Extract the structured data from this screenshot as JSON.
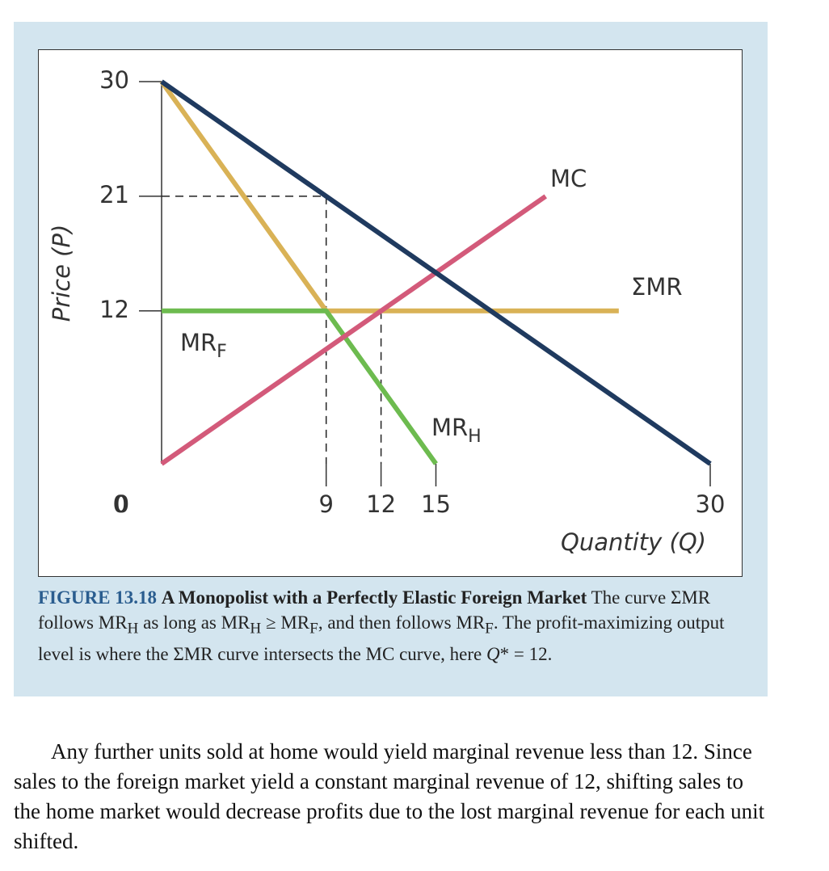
{
  "chart_data": {
    "type": "line",
    "xlabel": "Quantity (Q)",
    "ylabel": "Price (P)",
    "xlim": [
      0,
      30
    ],
    "ylim": [
      0,
      30
    ],
    "xticks": [
      0,
      9,
      12,
      15,
      30
    ],
    "yticks": [
      0,
      12,
      21,
      30
    ],
    "series": [
      {
        "color": "#1f3a5f",
        "x": [
          0,
          30
        ],
        "values": [
          30,
          0
        ]
      },
      {
        "color": "#d9b256",
        "x": [
          0,
          9,
          25
        ],
        "values": [
          30,
          12,
          12
        ]
      },
      {
        "color": "#6dbb4f",
        "x": [
          0,
          9,
          15
        ],
        "values": [
          12,
          12,
          0
        ]
      },
      {
        "color": "#d35a7a",
        "x": [
          0,
          21
        ],
        "values": [
          0,
          21
        ]
      }
    ],
    "guides": [
      {
        "x": 9,
        "y": 21
      },
      {
        "x": 12,
        "y": 12
      }
    ],
    "annotations": [
      {
        "text": "MC"
      },
      {
        "text": "ΣMR"
      },
      {
        "text": "MR",
        "sub": "F"
      },
      {
        "text": "MR",
        "sub": "H"
      }
    ]
  },
  "caption": {
    "label": "FIGURE 13.18",
    "title": "A Monopolist with a Perfectly Elastic Foreign Market",
    "runs": [
      "The curve ΣMR follows MR",
      "H",
      " as long as MR",
      "H",
      " ≥ MR",
      "F",
      ", and then follows MR",
      "F",
      ". The profit-maximizing output level is where the ΣMR curve intersects the MC curve, here ",
      "Q",
      "* = 12."
    ]
  },
  "paragraph": "Any further units sold at home would yield marginal revenue less than 12. Since sales to the foreign market yield a constant marginal revenue of 12, shifting sales to the home market would decrease profits due to the lost marginal revenue for each unit shifted."
}
